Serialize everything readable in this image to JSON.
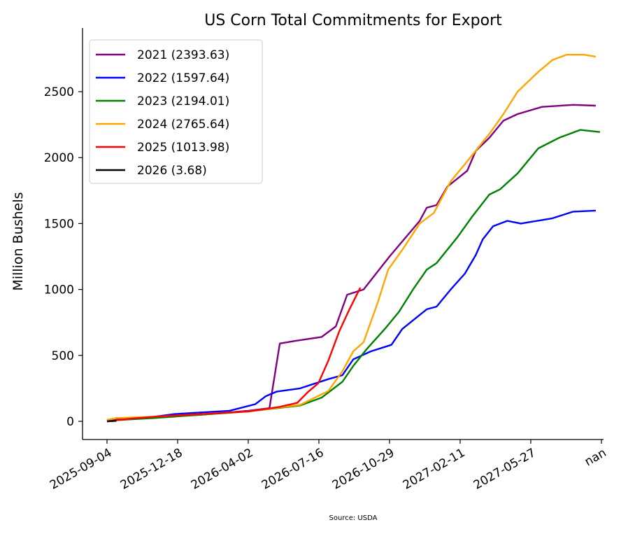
{
  "chart_data": {
    "type": "line",
    "title": "US Corn Total Commitments for Export",
    "xlabel": "",
    "ylabel": "Million Bushels",
    "source": "Source: USDA",
    "x_unit": "weeks since 2025-09-04",
    "xlim": [
      -5,
      106
    ],
    "ylim": [
      -130,
      2950
    ],
    "xticks": [
      {
        "x": 0,
        "label": "2025-09-04"
      },
      {
        "x": 15,
        "label": "2025-12-18"
      },
      {
        "x": 30,
        "label": "2026-04-02"
      },
      {
        "x": 45,
        "label": "2026-07-16"
      },
      {
        "x": 60,
        "label": "2026-10-29"
      },
      {
        "x": 75,
        "label": "2027-02-11"
      },
      {
        "x": 90,
        "label": "2027-05-27"
      },
      {
        "x": 105,
        "label": "nan"
      }
    ],
    "yticks": [
      0,
      500,
      1000,
      1500,
      2000,
      2500
    ],
    "legend_position": "top-left",
    "series": [
      {
        "name": "2021 (2393.63)",
        "color": "#800080",
        "points": [
          [
            0,
            10
          ],
          [
            10,
            30
          ],
          [
            20,
            50
          ],
          [
            30,
            80
          ],
          [
            34.5,
            100
          ],
          [
            36.7,
            590
          ],
          [
            40,
            610
          ],
          [
            45.6,
            640
          ],
          [
            48.6,
            720
          ],
          [
            51,
            960
          ],
          [
            54.5,
            1000
          ],
          [
            60,
            1250
          ],
          [
            66.4,
            1520
          ],
          [
            67.9,
            1620
          ],
          [
            70,
            1640
          ],
          [
            72.3,
            1780
          ],
          [
            76.5,
            1900
          ],
          [
            78.3,
            2050
          ],
          [
            81.2,
            2150
          ],
          [
            84.2,
            2280
          ],
          [
            87.2,
            2330
          ],
          [
            92.4,
            2385
          ],
          [
            99,
            2400
          ],
          [
            103.8,
            2394
          ]
        ]
      },
      {
        "name": "2022 (1597.64)",
        "color": "#0000ff",
        "points": [
          [
            0,
            10
          ],
          [
            8,
            25
          ],
          [
            14.4,
            55
          ],
          [
            26,
            80
          ],
          [
            31.5,
            130
          ],
          [
            33.7,
            190
          ],
          [
            36,
            225
          ],
          [
            41,
            250
          ],
          [
            47,
            320
          ],
          [
            50,
            350
          ],
          [
            52.3,
            470
          ],
          [
            56,
            530
          ],
          [
            60.4,
            580
          ],
          [
            62.7,
            700
          ],
          [
            67.9,
            850
          ],
          [
            70,
            870
          ],
          [
            73,
            1000
          ],
          [
            76,
            1120
          ],
          [
            78.3,
            1260
          ],
          [
            79.8,
            1380
          ],
          [
            82,
            1480
          ],
          [
            85,
            1520
          ],
          [
            87.9,
            1500
          ],
          [
            94.6,
            1540
          ],
          [
            99,
            1590
          ],
          [
            103.8,
            1598
          ]
        ]
      },
      {
        "name": "2023 (2194.01)",
        "color": "#008000",
        "points": [
          [
            0,
            5
          ],
          [
            10,
            25
          ],
          [
            30,
            75
          ],
          [
            41,
            120
          ],
          [
            45.6,
            180
          ],
          [
            50,
            300
          ],
          [
            52.3,
            420
          ],
          [
            55.2,
            550
          ],
          [
            59,
            700
          ],
          [
            62,
            830
          ],
          [
            65,
            1000
          ],
          [
            67.9,
            1150
          ],
          [
            70,
            1200
          ],
          [
            74.5,
            1400
          ],
          [
            77.5,
            1550
          ],
          [
            81.2,
            1720
          ],
          [
            83.5,
            1760
          ],
          [
            87.2,
            1880
          ],
          [
            91.6,
            2070
          ],
          [
            96,
            2150
          ],
          [
            100.5,
            2210
          ],
          [
            104.7,
            2194
          ]
        ]
      },
      {
        "name": "2024 (2765.64)",
        "color": "#ffa500",
        "points": [
          [
            0,
            10
          ],
          [
            2,
            25
          ],
          [
            10,
            35
          ],
          [
            30,
            75
          ],
          [
            41,
            125
          ],
          [
            47,
            230
          ],
          [
            50,
            380
          ],
          [
            52.3,
            530
          ],
          [
            54.5,
            600
          ],
          [
            57.5,
            900
          ],
          [
            59.7,
            1150
          ],
          [
            62.7,
            1300
          ],
          [
            66.4,
            1500
          ],
          [
            69.4,
            1580
          ],
          [
            73,
            1820
          ],
          [
            76,
            1950
          ],
          [
            81.2,
            2180
          ],
          [
            84.2,
            2330
          ],
          [
            87.2,
            2500
          ],
          [
            91.6,
            2650
          ],
          [
            94.6,
            2740
          ],
          [
            97.6,
            2780
          ],
          [
            101.3,
            2780
          ],
          [
            103.8,
            2766
          ]
        ]
      },
      {
        "name": "2025 (1013.98)",
        "color": "#ff0000",
        "points": [
          [
            0,
            0
          ],
          [
            5,
            20
          ],
          [
            10,
            35
          ],
          [
            30,
            75
          ],
          [
            36.7,
            110
          ],
          [
            40.4,
            140
          ],
          [
            42.6,
            220
          ],
          [
            44.9,
            290
          ],
          [
            47,
            460
          ],
          [
            49.3,
            680
          ],
          [
            51.5,
            850
          ],
          [
            53.8,
            1014
          ]
        ]
      },
      {
        "name": "2026 (3.68)",
        "color": "#000000",
        "points": [
          [
            0,
            0
          ],
          [
            2,
            3.68
          ]
        ]
      }
    ]
  }
}
